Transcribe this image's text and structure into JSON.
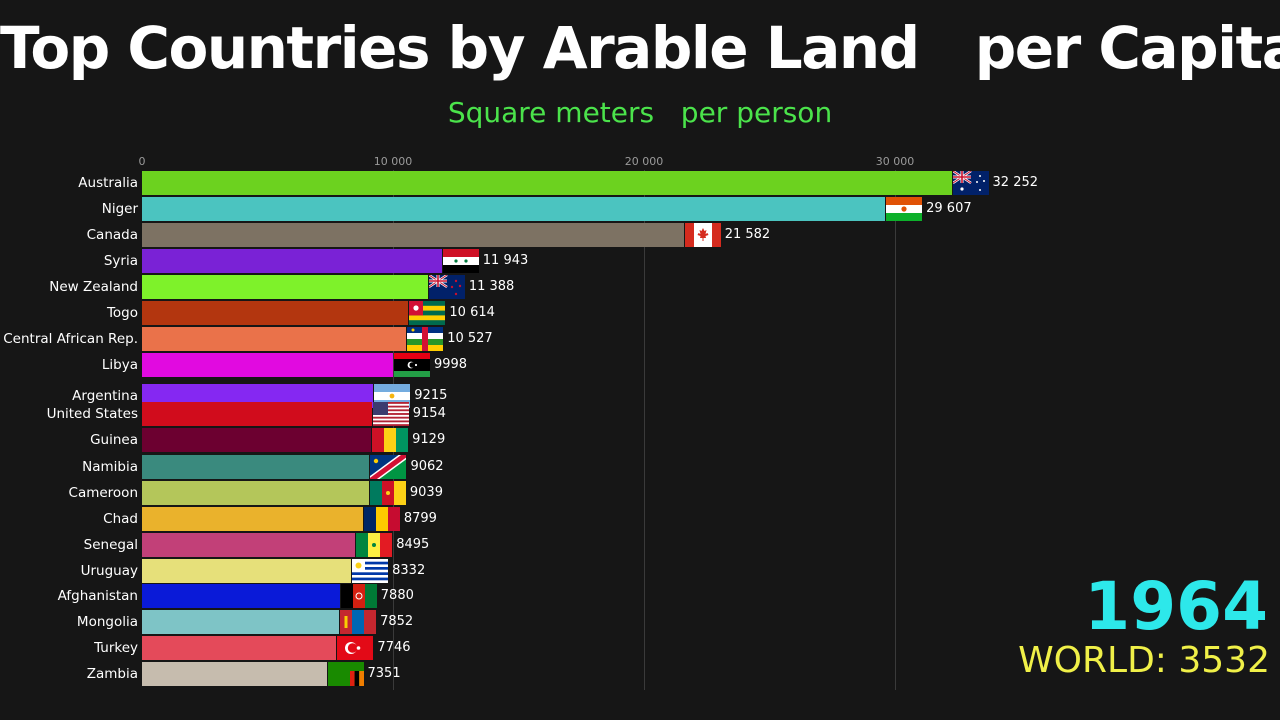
{
  "header": {
    "title": "Top Countries by Arable Land   per Capita",
    "subtitle": "Square meters   per person"
  },
  "axis": {
    "ticks": [
      {
        "value": 0,
        "label": "0"
      },
      {
        "value": 10000,
        "label": "10 000"
      },
      {
        "value": 20000,
        "label": "20 000"
      },
      {
        "value": 30000,
        "label": "30 000"
      }
    ]
  },
  "footer": {
    "year": "1964",
    "world_label": "WORLD: 3532"
  },
  "bars": [
    {
      "country": "Australia",
      "value": 32252,
      "label": "32 252",
      "color": "#6cd21f",
      "flag": "australia"
    },
    {
      "country": "Niger",
      "value": 29607,
      "label": "29 607",
      "color": "#4bc4c0",
      "flag": "niger"
    },
    {
      "country": "Canada",
      "value": 21582,
      "label": "21 582",
      "color": "#7d7263",
      "flag": "canada"
    },
    {
      "country": "Syria",
      "value": 11943,
      "label": "11 943",
      "color": "#7a22d6",
      "flag": "syria"
    },
    {
      "country": "New Zealand",
      "value": 11388,
      "label": "11 388",
      "color": "#7ef22a",
      "flag": "new-zealand"
    },
    {
      "country": "Togo",
      "value": 10614,
      "label": "10 614",
      "color": "#b3360f",
      "flag": "togo"
    },
    {
      "country": "Central African Rep.",
      "value": 10527,
      "label": "10 527",
      "color": "#ea724a",
      "flag": "central-african-rep"
    },
    {
      "country": "Libya",
      "value": 9998,
      "label": "9998",
      "color": "#e10ae0",
      "flag": "libya"
    },
    {
      "country": "Argentina",
      "value": 9215,
      "label": "9215",
      "color": "#8528f2",
      "flag": "argentina"
    },
    {
      "country": "United States",
      "value": 9154,
      "label": "9154",
      "color": "#d10c1c",
      "flag": "united-states"
    },
    {
      "country": "Guinea",
      "value": 9129,
      "label": "9129",
      "color": "#6c0030",
      "flag": "guinea"
    },
    {
      "country": "Namibia",
      "value": 9062,
      "label": "9062",
      "color": "#3a8a7e",
      "flag": "namibia"
    },
    {
      "country": "Cameroon",
      "value": 9039,
      "label": "9039",
      "color": "#b4c65a",
      "flag": "cameroon"
    },
    {
      "country": "Chad",
      "value": 8799,
      "label": "8799",
      "color": "#eab22c",
      "flag": "chad"
    },
    {
      "country": "Senegal",
      "value": 8495,
      "label": "8495",
      "color": "#c24078",
      "flag": "senegal"
    },
    {
      "country": "Uruguay",
      "value": 8332,
      "label": "8332",
      "color": "#e6e07a",
      "flag": "uruguay"
    },
    {
      "country": "Afghanistan",
      "value": 7880,
      "label": "7880",
      "color": "#0a1ad8",
      "flag": "afghanistan"
    },
    {
      "country": "Mongolia",
      "value": 7852,
      "label": "7852",
      "color": "#7ec4c6",
      "flag": "mongolia"
    },
    {
      "country": "Turkey",
      "value": 7746,
      "label": "7746",
      "color": "#e44a5a",
      "flag": "turkey"
    },
    {
      "country": "Zambia",
      "value": 7351,
      "label": "7351",
      "color": "#c6bcae",
      "flag": "zambia"
    }
  ],
  "chart_data": {
    "type": "bar",
    "orientation": "horizontal",
    "title": "Top Countries by Arable Land per Capita",
    "subtitle": "Square meters per person",
    "xlabel": "Square meters per person",
    "ylabel": "",
    "xlim": [
      0,
      35000
    ],
    "x_ticks": [
      0,
      10000,
      20000,
      30000
    ],
    "grid": true,
    "annotations": [
      "1964",
      "WORLD: 3532"
    ],
    "categories": [
      "Australia",
      "Niger",
      "Canada",
      "Syria",
      "New Zealand",
      "Togo",
      "Central African Rep.",
      "Libya",
      "Argentina",
      "United States",
      "Guinea",
      "Namibia",
      "Cameroon",
      "Chad",
      "Senegal",
      "Uruguay",
      "Afghanistan",
      "Mongolia",
      "Turkey",
      "Zambia"
    ],
    "values": [
      32252,
      29607,
      21582,
      11943,
      11388,
      10614,
      10527,
      9998,
      9215,
      9154,
      9129,
      9062,
      9039,
      8799,
      8495,
      8332,
      7880,
      7852,
      7746,
      7351
    ]
  }
}
